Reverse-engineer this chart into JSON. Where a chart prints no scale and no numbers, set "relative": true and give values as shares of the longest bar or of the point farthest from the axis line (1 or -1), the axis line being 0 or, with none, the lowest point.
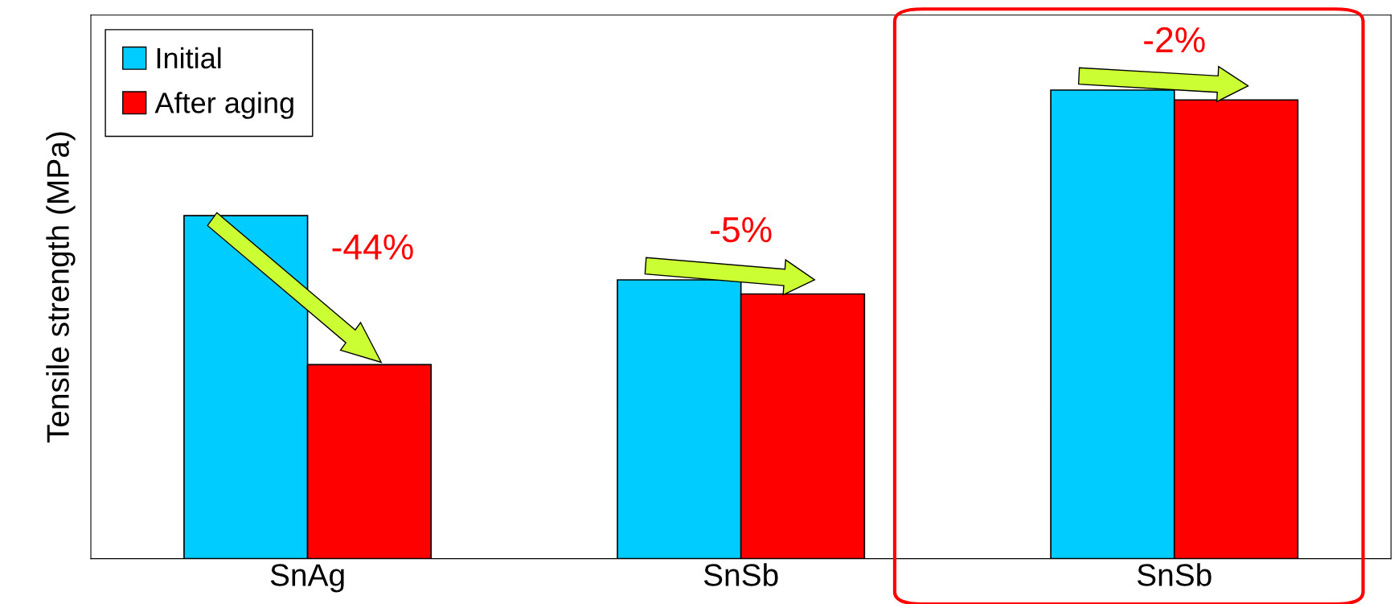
{
  "chart_data": {
    "type": "bar",
    "relative": true,
    "ylabel": "Tensile strength (MPa)",
    "categories": [
      "SnAg",
      "SnSb",
      "SnSb"
    ],
    "series": [
      {
        "name": "Initial",
        "color": "#00ccff",
        "values": [
          0.732,
          0.595,
          1
        ]
      },
      {
        "name": "After aging",
        "color": "#ff0000",
        "values": [
          0.414,
          0.565,
          0.979
        ]
      }
    ],
    "annotations": [
      "-44%",
      "-5%",
      "-2%"
    ],
    "legend": "top left",
    "grid": false
  }
}
